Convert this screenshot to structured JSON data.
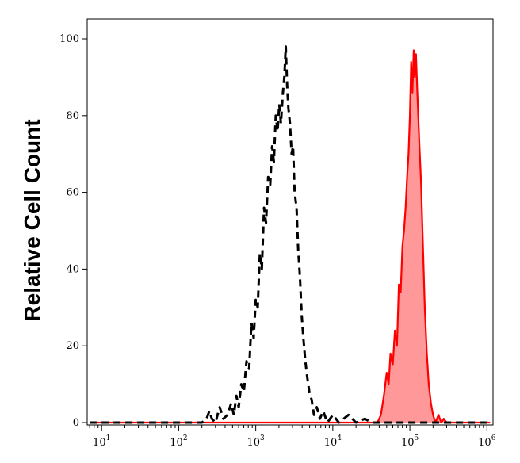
{
  "chart_data": {
    "type": "area",
    "title": "",
    "xlabel": "",
    "ylabel": "Relative Cell Count",
    "x_scale": "log",
    "xlim": [
      6.5,
      1200000
    ],
    "ylim": [
      0,
      100
    ],
    "y_ticks": [
      0,
      20,
      40,
      60,
      80,
      100
    ],
    "x_ticks": [
      {
        "value": 10,
        "base": "10",
        "exp": "1"
      },
      {
        "value": 100,
        "base": "10",
        "exp": "2"
      },
      {
        "value": 1000,
        "base": "10",
        "exp": "3"
      },
      {
        "value": 10000,
        "base": "10",
        "exp": "4"
      },
      {
        "value": 100000,
        "base": "10",
        "exp": "5"
      },
      {
        "value": 1000000,
        "base": "10",
        "exp": "6"
      }
    ],
    "grid": false,
    "legend": "none",
    "series": [
      {
        "style": "dashed",
        "color": "#000000",
        "fill": "none",
        "points": [
          [
            7,
            0
          ],
          [
            150,
            0
          ],
          [
            200,
            0
          ],
          [
            230,
            1
          ],
          [
            250,
            3
          ],
          [
            270,
            1
          ],
          [
            300,
            0
          ],
          [
            340,
            4
          ],
          [
            380,
            1
          ],
          [
            430,
            2
          ],
          [
            480,
            5
          ],
          [
            520,
            2
          ],
          [
            560,
            7
          ],
          [
            600,
            4
          ],
          [
            650,
            10
          ],
          [
            700,
            8
          ],
          [
            760,
            16
          ],
          [
            820,
            14
          ],
          [
            880,
            26
          ],
          [
            940,
            22
          ],
          [
            1000,
            32
          ],
          [
            1060,
            30
          ],
          [
            1130,
            44
          ],
          [
            1200,
            40
          ],
          [
            1280,
            56
          ],
          [
            1360,
            52
          ],
          [
            1450,
            64
          ],
          [
            1540,
            62
          ],
          [
            1630,
            72
          ],
          [
            1720,
            68
          ],
          [
            1820,
            80
          ],
          [
            1920,
            76
          ],
          [
            2020,
            83
          ],
          [
            2120,
            78
          ],
          [
            2250,
            86
          ],
          [
            2350,
            90
          ],
          [
            2450,
            98
          ],
          [
            2550,
            88
          ],
          [
            2650,
            82
          ],
          [
            2780,
            78
          ],
          [
            2920,
            70
          ],
          [
            3050,
            72
          ],
          [
            3200,
            60
          ],
          [
            3380,
            56
          ],
          [
            3560,
            45
          ],
          [
            3750,
            38
          ],
          [
            3950,
            28
          ],
          [
            4150,
            22
          ],
          [
            4400,
            16
          ],
          [
            4650,
            12
          ],
          [
            4950,
            8
          ],
          [
            5300,
            6
          ],
          [
            5700,
            2
          ],
          [
            6200,
            4
          ],
          [
            6800,
            1
          ],
          [
            7500,
            3
          ],
          [
            8500,
            0
          ],
          [
            10000,
            2
          ],
          [
            12000,
            0
          ],
          [
            16000,
            2
          ],
          [
            20000,
            0
          ],
          [
            26000,
            1
          ],
          [
            32000,
            0
          ],
          [
            60000,
            0
          ],
          [
            1100000,
            0
          ]
        ]
      },
      {
        "style": "solid",
        "color": "#ff0000",
        "fill": "#ff9999",
        "points": [
          [
            7,
            0
          ],
          [
            30000,
            0
          ],
          [
            38000,
            0
          ],
          [
            42000,
            2
          ],
          [
            46000,
            7
          ],
          [
            50000,
            13
          ],
          [
            53000,
            10
          ],
          [
            56000,
            18
          ],
          [
            60000,
            15
          ],
          [
            64000,
            24
          ],
          [
            68000,
            20
          ],
          [
            72000,
            36
          ],
          [
            76000,
            34
          ],
          [
            80000,
            46
          ],
          [
            84000,
            50
          ],
          [
            88000,
            56
          ],
          [
            92000,
            64
          ],
          [
            96000,
            70
          ],
          [
            100000,
            80
          ],
          [
            104000,
            94
          ],
          [
            108000,
            86
          ],
          [
            112000,
            97
          ],
          [
            116000,
            90
          ],
          [
            120000,
            96
          ],
          [
            125000,
            86
          ],
          [
            132000,
            74
          ],
          [
            140000,
            62
          ],
          [
            148000,
            46
          ],
          [
            156000,
            30
          ],
          [
            166000,
            18
          ],
          [
            176000,
            10
          ],
          [
            188000,
            5
          ],
          [
            200000,
            2
          ],
          [
            215000,
            0
          ],
          [
            235000,
            2
          ],
          [
            255000,
            0
          ],
          [
            275000,
            1
          ],
          [
            300000,
            0
          ],
          [
            1100000,
            0
          ]
        ]
      }
    ]
  }
}
